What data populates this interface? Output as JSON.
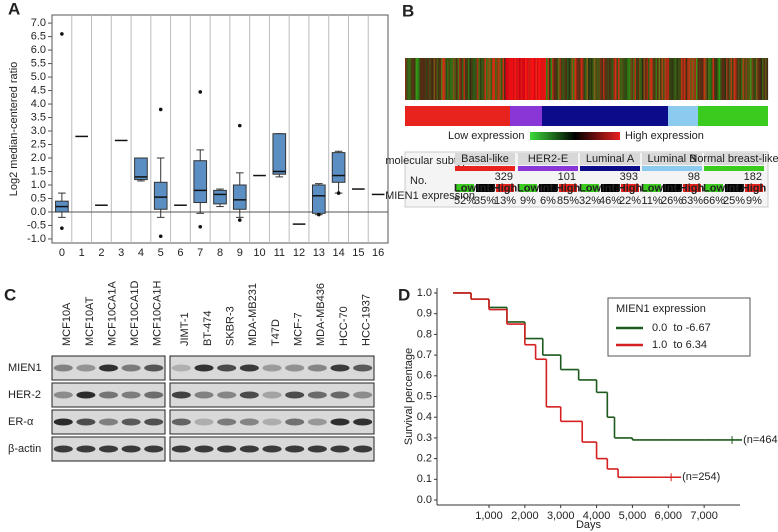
{
  "panel_labels": [
    "A",
    "B",
    "C",
    "D"
  ],
  "chart_data": [
    {
      "type": "box",
      "y_label": "Log2 median-centered ratio",
      "categories": [
        "0",
        "1",
        "2",
        "3",
        "4",
        "5",
        "6",
        "7",
        "8",
        "9",
        "10",
        "11",
        "12",
        "13",
        "14",
        "15",
        "16"
      ],
      "color": "#5b8fc4",
      "whisker_low": [
        -0.2,
        null,
        null,
        null,
        1.15,
        -0.2,
        null,
        -0.05,
        0.2,
        -0.2,
        null,
        1.3,
        null,
        -0.1,
        0.7,
        null,
        null
      ],
      "q1": [
        0.0,
        null,
        null,
        null,
        1.2,
        0.1,
        null,
        0.35,
        0.3,
        0.1,
        null,
        1.4,
        null,
        -0.05,
        1.1,
        null,
        null
      ],
      "median": [
        0.2,
        2.8,
        0.25,
        2.65,
        1.3,
        0.55,
        0.25,
        0.8,
        0.65,
        0.45,
        1.35,
        1.5,
        -0.45,
        0.6,
        1.35,
        0.85,
        0.65
      ],
      "q3": [
        0.4,
        null,
        null,
        null,
        2.0,
        1.1,
        null,
        1.9,
        0.8,
        1.0,
        null,
        2.9,
        null,
        1.0,
        2.2,
        null,
        null
      ],
      "whisker_high": [
        0.7,
        null,
        null,
        null,
        2.0,
        2.0,
        null,
        2.3,
        0.85,
        1.45,
        null,
        2.9,
        null,
        1.05,
        2.25,
        null,
        null
      ],
      "outliers": [
        [
          6.6,
          -0.6
        ],
        [],
        [],
        [],
        [],
        [
          3.8,
          -0.9
        ],
        [],
        [
          4.45,
          -0.55
        ],
        [],
        [
          3.2,
          -0.3
        ],
        [],
        [],
        [],
        [
          -0.1
        ],
        [
          0.7
        ],
        [],
        []
      ],
      "ylim": [
        -1.15,
        7.3
      ],
      "yticks": [
        {
          "value": 7,
          "label": "7.0"
        },
        {
          "value": 6.5,
          "label": "6.5"
        },
        {
          "value": 6,
          "label": "6.0"
        },
        {
          "value": 5.5,
          "label": "5.5"
        },
        {
          "value": 5,
          "label": "5.0"
        },
        {
          "value": 4.5,
          "label": "4.5"
        },
        {
          "value": 4,
          "label": "4.0"
        },
        {
          "value": 3.5,
          "label": "3.5"
        },
        {
          "value": 3,
          "label": "3.0"
        },
        {
          "value": 2.5,
          "label": "2.5"
        },
        {
          "value": 2,
          "label": "2.0"
        },
        {
          "value": 1.5,
          "label": "1.5"
        },
        {
          "value": 1,
          "label": "1.0"
        },
        {
          "value": 0.5,
          "label": "0.5"
        },
        {
          "value": 0,
          "label": "0.0"
        },
        {
          "value": -0.5,
          "label": "-0.5"
        },
        {
          "value": -1,
          "label": "-1.0"
        }
      ]
    },
    {
      "type": "step",
      "y_label": "Survival percentage",
      "x_label": "Days",
      "legend_title": "MIEN1 expression",
      "series": [
        {
          "name": "0.0  to -6.67",
          "color": "#1d5a1d",
          "end_label": "(n=464)",
          "x": [
            0,
            500,
            1000,
            1500,
            2000,
            2500,
            3000,
            3500,
            4000,
            4300,
            4500,
            5000,
            6000,
            7000,
            7500
          ],
          "values": [
            1.0,
            0.97,
            0.93,
            0.86,
            0.78,
            0.7,
            0.63,
            0.58,
            0.52,
            0.4,
            0.3,
            0.29,
            0.29,
            0.29,
            0.29
          ]
        },
        {
          "name": "1.0  to 6.34",
          "color": "#d42020",
          "end_label": "(n=254)",
          "x": [
            0,
            500,
            1000,
            1500,
            2000,
            2300,
            2600,
            3000,
            3400,
            3600,
            4000,
            4300,
            4600,
            5000,
            5800
          ],
          "values": [
            1.0,
            0.97,
            0.92,
            0.85,
            0.75,
            0.68,
            0.45,
            0.38,
            0.38,
            0.28,
            0.2,
            0.15,
            0.11,
            0.11,
            0.11
          ]
        }
      ],
      "xlim": [
        -450,
        8000
      ],
      "ylim": [
        -0.024,
        1.024
      ],
      "xticks": [
        {
          "value": 1000,
          "label": "1,000"
        },
        {
          "value": 2000,
          "label": "2,000"
        },
        {
          "value": 3000,
          "label": "3,000"
        },
        {
          "value": 4000,
          "label": "4,000"
        },
        {
          "value": 5000,
          "label": "5,000"
        },
        {
          "value": 6000,
          "label": "6,000"
        },
        {
          "value": 7000,
          "label": "7,000"
        }
      ],
      "yticks": [
        {
          "value": 1,
          "label": "1.0"
        },
        {
          "value": 0.9,
          "label": "0.9"
        },
        {
          "value": 0.8,
          "label": "0.8"
        },
        {
          "value": 0.7,
          "label": "0.7"
        },
        {
          "value": 0.6,
          "label": "0.6"
        },
        {
          "value": 0.5,
          "label": "0.5"
        },
        {
          "value": 0.4,
          "label": "0.4"
        },
        {
          "value": 0.3,
          "label": "0.3"
        },
        {
          "value": 0.2,
          "label": "0.2"
        },
        {
          "value": 0.1,
          "label": "0.1"
        },
        {
          "value": 0,
          "label": "0.0"
        }
      ]
    }
  ],
  "heatmap": {
    "low_label": "Low expression",
    "high_label": "High expression",
    "header": "molecular subtype",
    "count_header": "No.",
    "expr_header": "MIEN1 expression",
    "levels": [
      "Low",
      "Int.",
      "High"
    ],
    "subtypes": [
      {
        "name": "Basal-like",
        "color": "#e8221c",
        "n": "329",
        "pct": [
          "52%",
          "35%",
          "13%"
        ]
      },
      {
        "name": "HER2-E",
        "color": "#8a35d6",
        "n": "101",
        "pct": [
          "9%",
          "6%",
          "85%"
        ]
      },
      {
        "name": "Luminal A",
        "color": "#0c0c8a",
        "n": "393",
        "pct": [
          "32%",
          "46%",
          "22%"
        ]
      },
      {
        "name": "Luminal B",
        "color": "#8ccbef",
        "n": "98",
        "pct": [
          "11%",
          "26%",
          "63%"
        ]
      },
      {
        "name": "Normal breast-like",
        "color": "#3bcb1f",
        "n": "182",
        "pct": [
          "66%",
          "25%",
          "9%"
        ]
      }
    ]
  },
  "blot": {
    "lanes_left": [
      "MCF10A",
      "MCF10AT",
      "MCF10CA1A",
      "MCF10CA1D",
      "MCF10CA1H"
    ],
    "lanes_right": [
      "JIMT-1",
      "BT-474",
      "SKBR-3",
      "MDA-MB231",
      "T47D",
      "MCF-7",
      "MDA-MB436",
      "HCC-70",
      "HCC-1937"
    ],
    "rows": [
      "MIEN1",
      "HER-2",
      "ER-α",
      "β-actin"
    ]
  }
}
